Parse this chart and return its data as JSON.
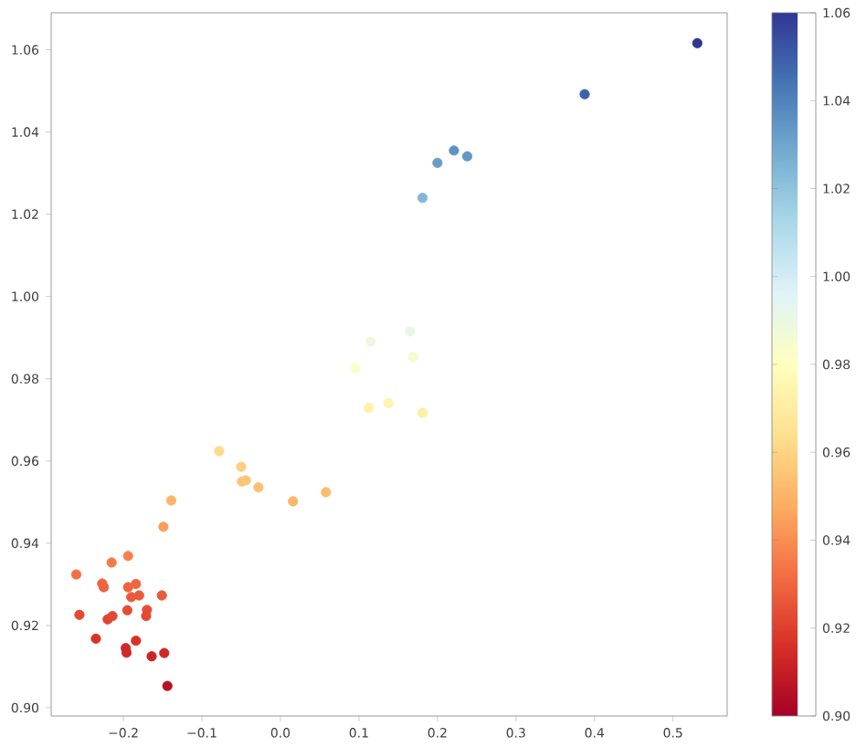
{
  "chart_data": {
    "type": "scatter",
    "marker": "circle",
    "x": [
      -0.26,
      -0.256,
      -0.235,
      -0.227,
      -0.225,
      -0.215,
      -0.22,
      -0.214,
      -0.194,
      -0.194,
      -0.184,
      -0.19,
      -0.18,
      -0.195,
      -0.17,
      -0.171,
      -0.197,
      -0.196,
      -0.184,
      -0.164,
      -0.148,
      -0.144,
      -0.151,
      -0.149,
      -0.139,
      -0.078,
      -0.05,
      -0.049,
      -0.044,
      -0.028,
      0.016,
      0.058,
      0.095,
      0.115,
      0.165,
      0.169,
      0.1125,
      0.1375,
      0.181,
      0.181,
      0.2,
      0.221,
      0.238,
      0.3875,
      0.531
    ],
    "values": [
      0.9324,
      0.9226,
      0.9168,
      0.9302,
      0.9293,
      0.9353,
      0.9215,
      0.9223,
      0.9369,
      0.9293,
      0.9301,
      0.9269,
      0.9273,
      0.9237,
      0.9238,
      0.9223,
      0.9145,
      0.9134,
      0.9163,
      0.9125,
      0.9133,
      0.9053,
      0.9273,
      0.944,
      0.9504,
      0.9624,
      0.9586,
      0.955,
      0.9553,
      0.9536,
      0.9502,
      0.9524,
      0.9826,
      0.989,
      0.9915,
      0.9853,
      0.9729,
      0.9741,
      0.9717,
      1.024,
      1.0325,
      1.0355,
      1.0341,
      1.0492,
      1.0616
    ],
    "cvalues": [
      0.9324,
      0.9226,
      0.9168,
      0.9302,
      0.9293,
      0.9353,
      0.9215,
      0.9223,
      0.9369,
      0.9293,
      0.9301,
      0.9269,
      0.9273,
      0.9237,
      0.9238,
      0.9223,
      0.9145,
      0.9134,
      0.9163,
      0.9125,
      0.9133,
      0.9053,
      0.9273,
      0.944,
      0.9504,
      0.9624,
      0.9586,
      0.955,
      0.9553,
      0.9536,
      0.9502,
      0.9524,
      0.9826,
      0.989,
      0.9915,
      0.9853,
      0.9729,
      0.9741,
      0.9717,
      1.024,
      1.0325,
      1.0355,
      1.0341,
      1.0492,
      1.0616
    ],
    "xlim": [
      -0.292,
      0.569
    ],
    "ylim": [
      0.898,
      1.069
    ],
    "xticks": [
      {
        "value": -0.2,
        "label": "−0.2"
      },
      {
        "value": -0.1,
        "label": "−0.1"
      },
      {
        "value": 0.0,
        "label": "0.0"
      },
      {
        "value": 0.1,
        "label": "0.1"
      },
      {
        "value": 0.2,
        "label": "0.2"
      },
      {
        "value": 0.3,
        "label": "0.3"
      },
      {
        "value": 0.4,
        "label": "0.4"
      },
      {
        "value": 0.5,
        "label": "0.5"
      }
    ],
    "yticks": [
      {
        "value": 0.9,
        "label": "0.90"
      },
      {
        "value": 0.92,
        "label": "0.92"
      },
      {
        "value": 0.94,
        "label": "0.94"
      },
      {
        "value": 0.96,
        "label": "0.96"
      },
      {
        "value": 0.98,
        "label": "0.98"
      },
      {
        "value": 1.0,
        "label": "1.00"
      },
      {
        "value": 1.02,
        "label": "1.02"
      },
      {
        "value": 1.04,
        "label": "1.04"
      },
      {
        "value": 1.06,
        "label": "1.06"
      }
    ],
    "clim": [
      0.9,
      1.06
    ],
    "cticks": [
      {
        "value": 0.9,
        "label": "0.90"
      },
      {
        "value": 0.92,
        "label": "0.92"
      },
      {
        "value": 0.94,
        "label": "0.94"
      },
      {
        "value": 0.96,
        "label": "0.96"
      },
      {
        "value": 0.98,
        "label": "0.98"
      },
      {
        "value": 1.0,
        "label": "1.00"
      },
      {
        "value": 1.02,
        "label": "1.02"
      },
      {
        "value": 1.04,
        "label": "1.04"
      },
      {
        "value": 1.06,
        "label": "1.06"
      }
    ]
  }
}
